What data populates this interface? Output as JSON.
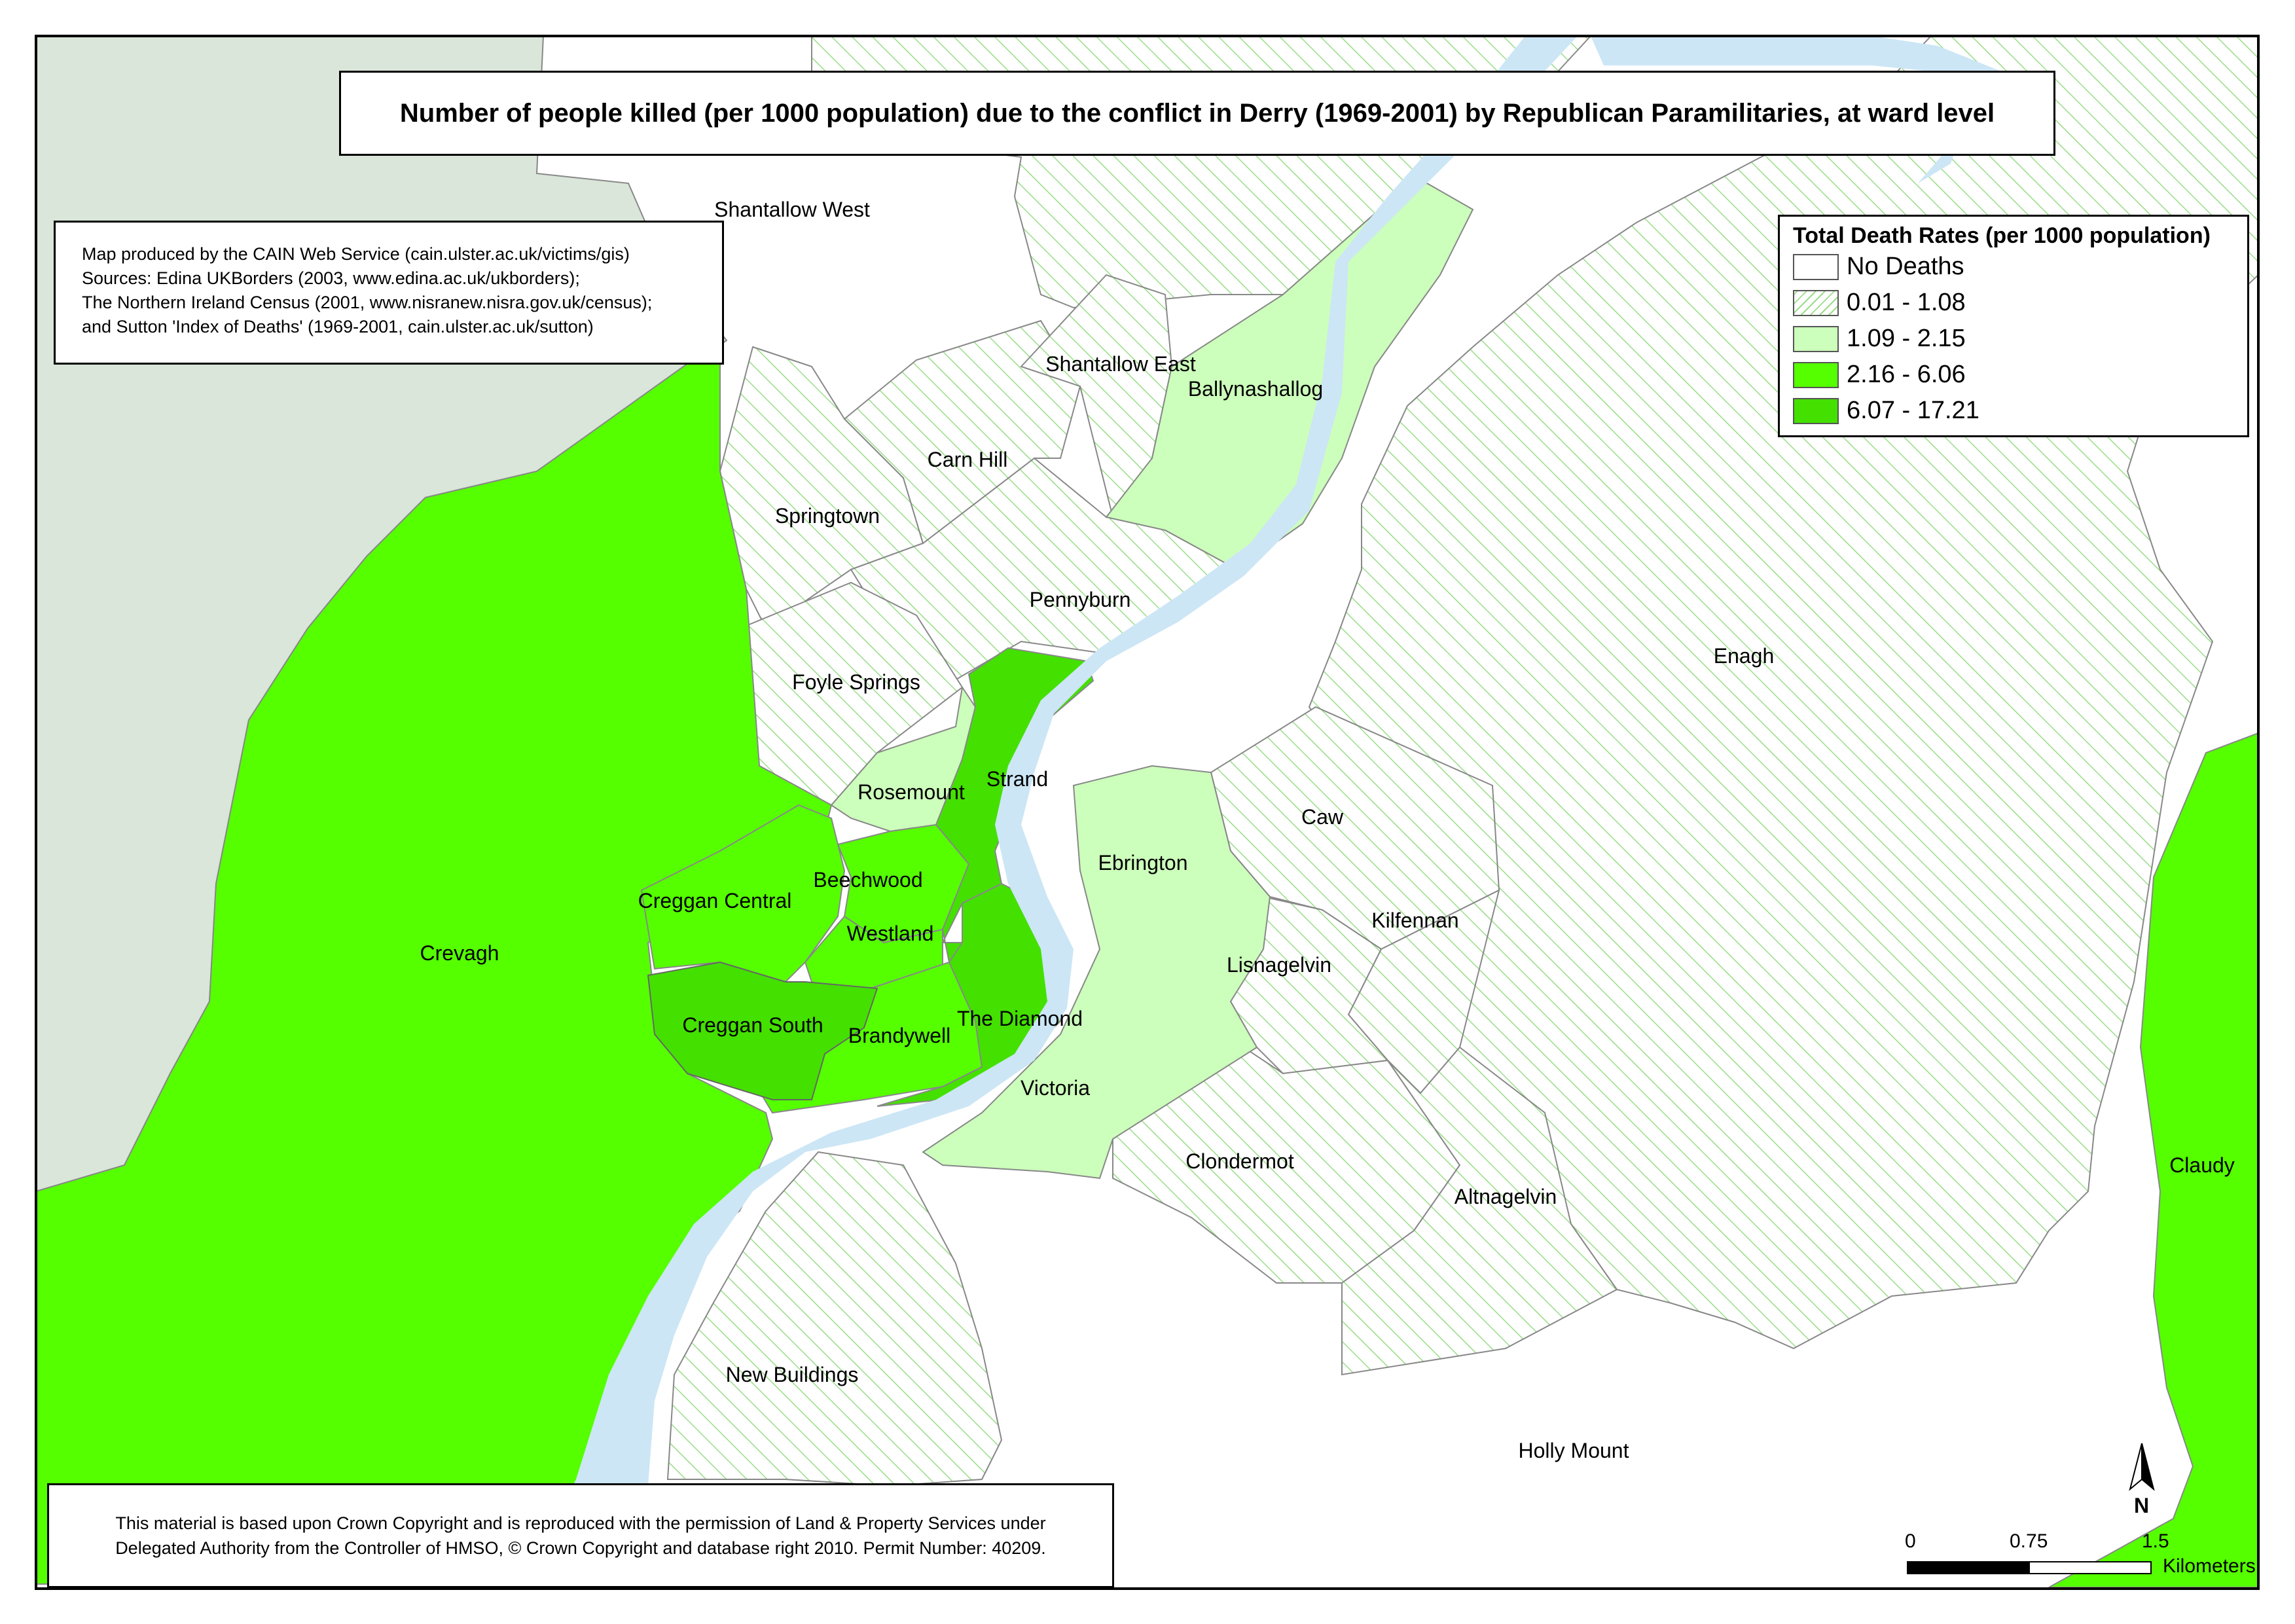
{
  "title": "Number of people killed (per 1000 population) due to the conflict in Derry (1969-2001) by Republican Paramilitaries, at ward level",
  "credits": [
    "Map produced by the CAIN Web Service (cain.ulster.ac.uk/victims/gis)",
    "Sources: Edina UKBorders (2003, www.edina.ac.uk/ukborders);",
    "The Northern Ireland Census (2001, www.nisranew.nisra.gov.uk/census);",
    "and Sutton 'Index of Deaths' (1969-2001, cain.ulster.ac.uk/sutton)"
  ],
  "copyright": [
    "This material is based upon Crown Copyright and is reproduced with the permission of Land & Property Services under",
    "Delegated Authority from the Controller of HMSO, © Crown Copyright and database right 2010. Permit Number: 40209."
  ],
  "legend": {
    "title": "Total Death Rates (per 1000 population)",
    "classes": [
      {
        "label": "No Deaths",
        "fill": "#ffffff"
      },
      {
        "label": "0.01 - 1.08",
        "fill": "hatch"
      },
      {
        "label": "1.09 - 2.15",
        "fill": "#ccffbb"
      },
      {
        "label": "2.16 - 6.06",
        "fill": "#55ff00"
      },
      {
        "label": "6.07 - 17.21",
        "fill": "#44e000"
      }
    ]
  },
  "wards": {
    "shantallow_west": "Shantallow West",
    "shantallow_east": "Shantallow East",
    "ballynashallog": "Ballynashallog",
    "carn_hill": "Carn Hill",
    "springtown": "Springtown",
    "pennyburn": "Pennyburn",
    "foyle_springs": "Foyle Springs",
    "enagh": "Enagh",
    "rosemount": "Rosemount",
    "strand": "Strand",
    "caw": "Caw",
    "ebrington": "Ebrington",
    "beechwood": "Beechwood",
    "creggan_central": "Creggan Central",
    "kilfennan": "Kilfennan",
    "westland": "Westland",
    "crevagh": "Crevagh",
    "lisnagelvin": "Lisnagelvin",
    "the_diamond": "The Diamond",
    "creggan_south": "Creggan South",
    "brandywell": "Brandywell",
    "victoria": "Victoria",
    "clondermot": "Clondermot",
    "claudy": "Claudy",
    "altnagelvin": "Altnagelvin",
    "new_buildings": "New Buildings",
    "holly_mount": "Holly Mount"
  },
  "north_arrow": "N",
  "scale_bar": {
    "ticks": [
      "0",
      "0.75",
      "1.5"
    ],
    "unit": "Kilometers"
  },
  "colors": {
    "donegal": "#d9e6d9",
    "river": "#cce6f5",
    "hatch": "#99dd88",
    "light": "#ccffbb",
    "medium": "#55ff00",
    "high": "#44e000"
  }
}
